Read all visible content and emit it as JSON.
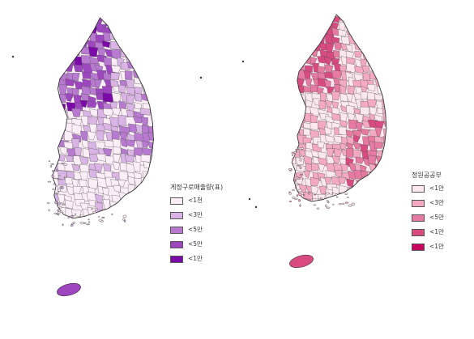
{
  "maps": [
    {
      "legend_title": "게정구로매출량(표)",
      "classes": [
        {
          "label": "<1천",
          "color": "#fbeef6"
        },
        {
          "label": "<3만",
          "color": "#d9b4e4"
        },
        {
          "label": "<5만",
          "color": "#b87ad0"
        },
        {
          "label": "<5만",
          "color": "#9e45c0"
        },
        {
          "label": "<1만",
          "color": "#7c0aa8"
        }
      ]
    },
    {
      "legend_title": "정원공공부",
      "classes": [
        {
          "label": "<1만",
          "color": "#fde8ef"
        },
        {
          "label": "<3만",
          "color": "#f3a9c2"
        },
        {
          "label": "<5만",
          "color": "#e67aa0"
        },
        {
          "label": "<1만",
          "color": "#d84a80"
        },
        {
          "label": "<1만",
          "color": "#c8005e"
        }
      ]
    }
  ]
}
